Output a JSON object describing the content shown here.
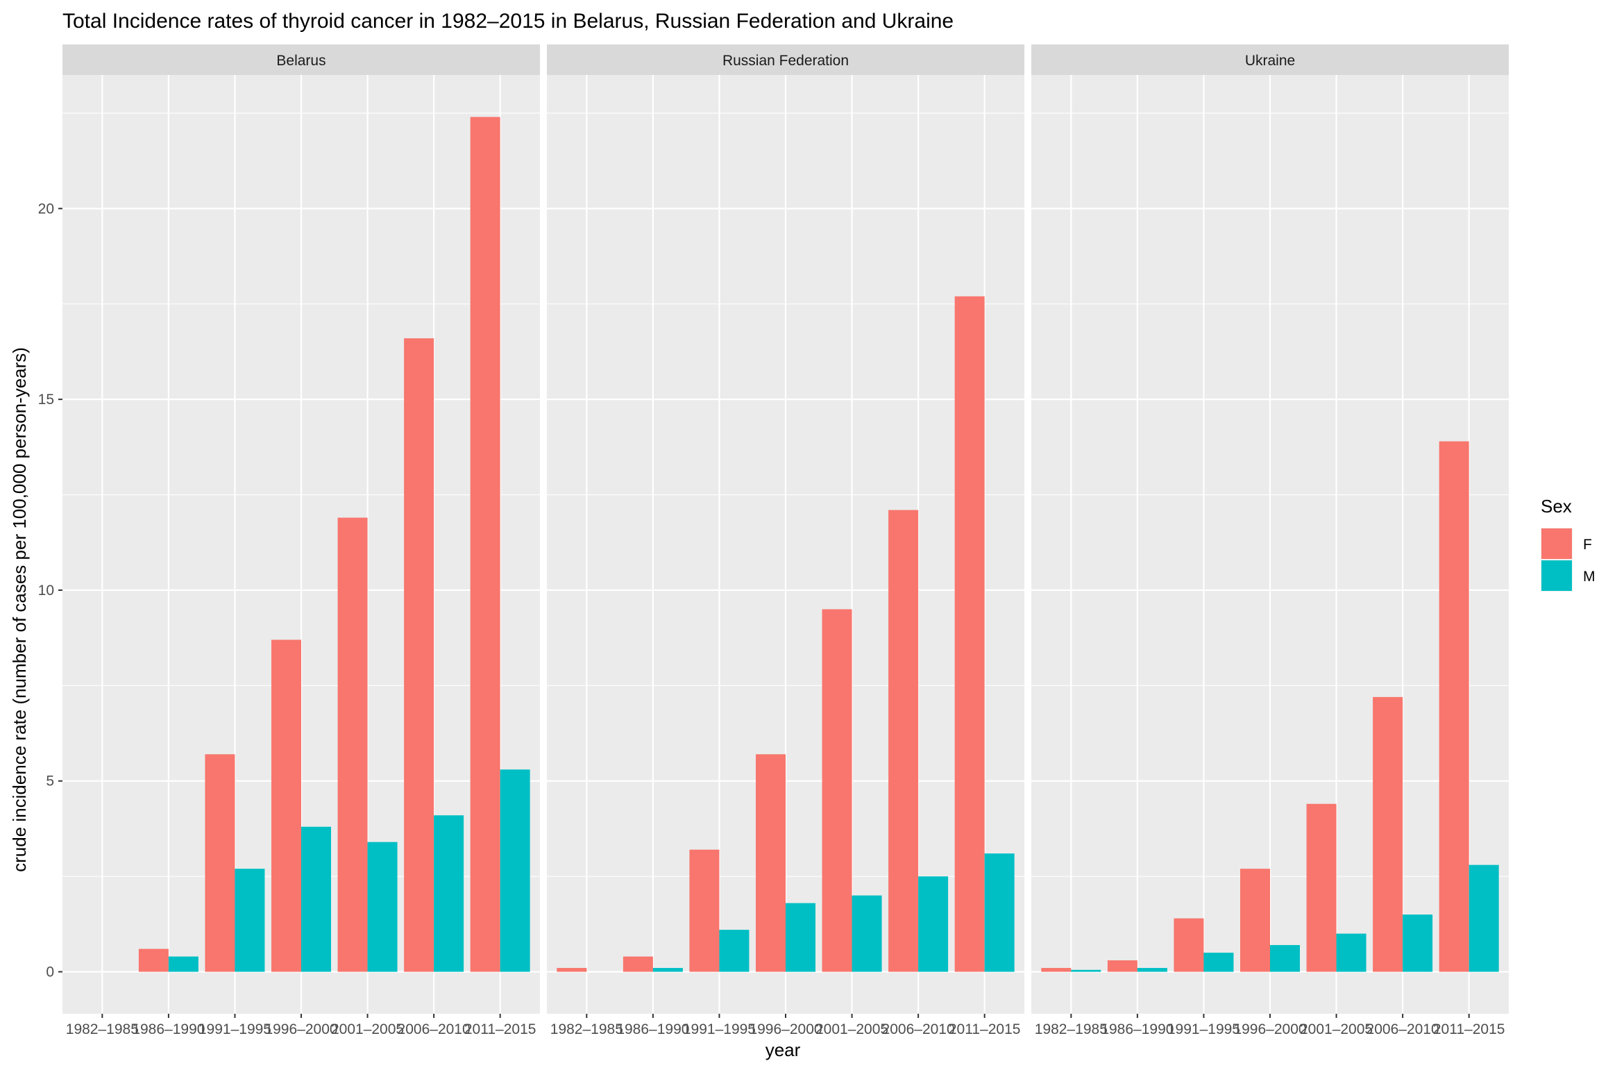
{
  "chart_data": {
    "type": "bar",
    "title": "Total Incidence rates of thyroid cancer in 1982–2015 in Belarus, Russian Federation and Ukraine",
    "xlabel": "year",
    "ylabel": "crude incidence rate (number of cases per 100,000 person-years)",
    "ylim": [
      -1.1,
      23.5
    ],
    "yticks": [
      0,
      5,
      10,
      15,
      20
    ],
    "categories": [
      "1982–1985",
      "1986–1990",
      "1991–1995",
      "1996–2000",
      "2001–2005",
      "2006–2010",
      "2011–2015"
    ],
    "grid": true,
    "legend": {
      "title": "Sex",
      "position": "right",
      "entries": [
        "F",
        "M"
      ]
    },
    "colors": {
      "F": "#F8766D",
      "M": "#00BFC4",
      "panel": "#EBEBEB",
      "strip": "#D9D9D9",
      "grid": "#FFFFFF"
    },
    "panels": [
      {
        "name": "Belarus",
        "series": [
          {
            "name": "F",
            "values": [
              0,
              0.6,
              5.7,
              8.7,
              11.9,
              16.6,
              22.4
            ]
          },
          {
            "name": "M",
            "values": [
              0,
              0.4,
              2.7,
              3.8,
              3.4,
              4.1,
              5.3
            ]
          }
        ]
      },
      {
        "name": "Russian Federation",
        "series": [
          {
            "name": "F",
            "values": [
              0.1,
              0.4,
              3.2,
              5.7,
              9.5,
              12.1,
              17.7
            ]
          },
          {
            "name": "M",
            "values": [
              0,
              0.1,
              1.1,
              1.8,
              2.0,
              2.5,
              3.1
            ]
          }
        ]
      },
      {
        "name": "Ukraine",
        "series": [
          {
            "name": "F",
            "values": [
              0.1,
              0.3,
              1.4,
              2.7,
              4.4,
              7.2,
              13.9
            ]
          },
          {
            "name": "M",
            "values": [
              0.05,
              0.1,
              0.5,
              0.7,
              1.0,
              1.5,
              2.8
            ]
          }
        ]
      }
    ]
  }
}
